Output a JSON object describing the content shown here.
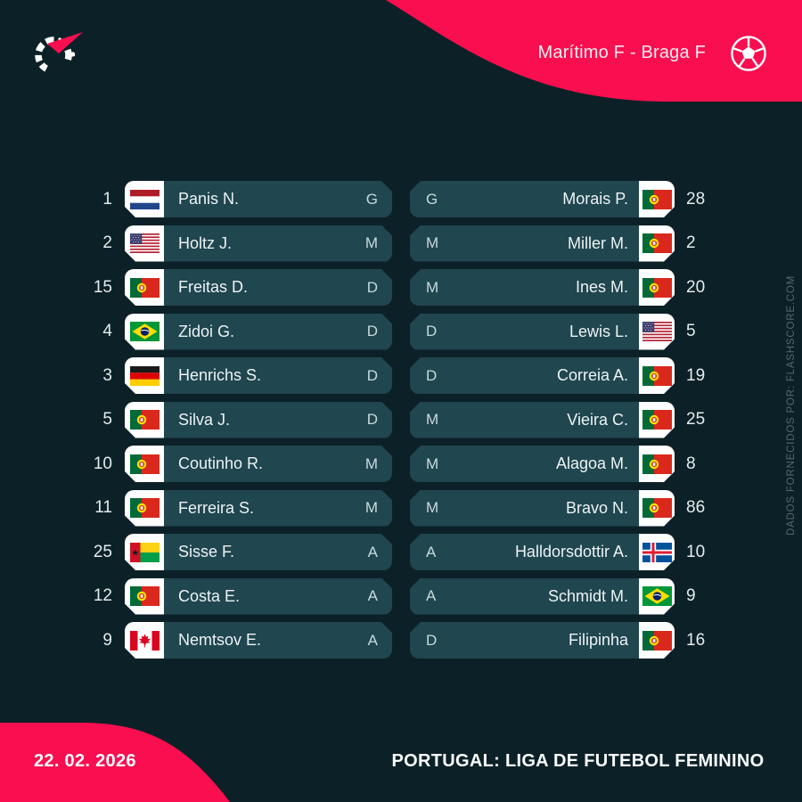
{
  "header": {
    "title": "Marítimo F - Braga F",
    "logo_icon": "flashscore-logo-icon",
    "ball_icon": "football-icon"
  },
  "footer": {
    "date": "22. 02. 2026",
    "competition": "PORTUGAL: LIGA DE FUTEBOL FEMININO"
  },
  "watermark": "DADOS FORNECIDOS POR: FLASHSCORE.COM",
  "colors": {
    "background": "#0c2127",
    "accent": "#f90e4f",
    "pill": "#20464f",
    "flag_box": "#ffffff",
    "text": "#ecf3f4",
    "muted_text": "#c7d9dc",
    "watermark_text": "#4d6b73"
  },
  "lineups": {
    "home": [
      {
        "number": "1",
        "flag": "netherlands",
        "name": "Panis N.",
        "position": "G"
      },
      {
        "number": "2",
        "flag": "usa",
        "name": "Holtz J.",
        "position": "M"
      },
      {
        "number": "15",
        "flag": "portugal",
        "name": "Freitas D.",
        "position": "D"
      },
      {
        "number": "4",
        "flag": "brazil",
        "name": "Zidoi G.",
        "position": "D"
      },
      {
        "number": "3",
        "flag": "germany",
        "name": "Henrichs S.",
        "position": "D"
      },
      {
        "number": "5",
        "flag": "portugal",
        "name": "Silva J.",
        "position": "D"
      },
      {
        "number": "10",
        "flag": "portugal",
        "name": "Coutinho R.",
        "position": "M"
      },
      {
        "number": "11",
        "flag": "portugal",
        "name": "Ferreira S.",
        "position": "M"
      },
      {
        "number": "25",
        "flag": "guinea-bissau",
        "name": "Sisse F.",
        "position": "A"
      },
      {
        "number": "12",
        "flag": "portugal",
        "name": "Costa E.",
        "position": "A"
      },
      {
        "number": "9",
        "flag": "canada",
        "name": "Nemtsov E.",
        "position": "A"
      }
    ],
    "away": [
      {
        "position": "G",
        "name": "Morais P.",
        "flag": "portugal",
        "number": "28"
      },
      {
        "position": "M",
        "name": "Miller M.",
        "flag": "portugal",
        "number": "2"
      },
      {
        "position": "M",
        "name": "Ines M.",
        "flag": "portugal",
        "number": "20"
      },
      {
        "position": "D",
        "name": "Lewis L.",
        "flag": "usa",
        "number": "5"
      },
      {
        "position": "D",
        "name": "Correia A.",
        "flag": "portugal",
        "number": "19"
      },
      {
        "position": "M",
        "name": "Vieira C.",
        "flag": "portugal",
        "number": "25"
      },
      {
        "position": "M",
        "name": "Alagoa M.",
        "flag": "portugal",
        "number": "8"
      },
      {
        "position": "M",
        "name": "Bravo N.",
        "flag": "portugal",
        "number": "86"
      },
      {
        "position": "A",
        "name": "Halldorsdottir A.",
        "flag": "iceland",
        "number": "10"
      },
      {
        "position": "A",
        "name": "Schmidt M.",
        "flag": "brazil",
        "number": "9"
      },
      {
        "position": "D",
        "name": "Filipinha",
        "flag": "portugal",
        "number": "16"
      }
    ]
  }
}
